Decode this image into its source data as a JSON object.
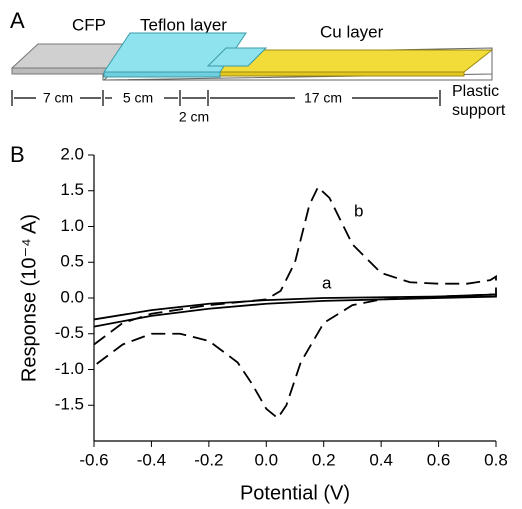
{
  "diagram": {
    "panel": "A",
    "cfp": "CFP",
    "teflon": "Teflon layer",
    "cu": "Cu layer",
    "support": [
      "Plastic",
      "support"
    ],
    "dims": [
      "7 cm",
      "5 cm",
      "2 cm",
      "17 cm"
    ]
  },
  "chart_data": {
    "type": "line",
    "panel": "B",
    "x_label": "Potential (V)",
    "y_label": "Response (10⁻⁴ A)",
    "xlim": [
      -0.6,
      0.8
    ],
    "ylim": [
      -2,
      2
    ],
    "xticks": [
      -0.6,
      -0.4,
      -0.2,
      {
        "value": 0,
        "label": "0.0"
      },
      0.2,
      0.4,
      0.6,
      0.8
    ],
    "yticks": [
      -1.5,
      {
        "value": -1,
        "label": "-1.0"
      },
      -0.5,
      {
        "value": 0,
        "label": "0.0"
      },
      0.5,
      {
        "value": 1,
        "label": "1.0"
      },
      1.5,
      {
        "value": 2,
        "label": "2.0"
      }
    ],
    "series": [
      {
        "name": "a",
        "color": "#000000",
        "dash": false,
        "x": [
          -0.6,
          -0.4,
          -0.2,
          0,
          0.2,
          0.4,
          0.6,
          0.8,
          0.8,
          0.6,
          0.4,
          0.2,
          0,
          -0.2,
          -0.4,
          -0.6
        ],
        "values": [
          -0.3,
          -0.17,
          -0.08,
          -0.03,
          0,
          0.01,
          0.02,
          0.05,
          0.02,
          0,
          -0.02,
          -0.04,
          -0.08,
          -0.15,
          -0.25,
          -0.4
        ]
      },
      {
        "name": "b",
        "color": "#000000",
        "dash": true,
        "x": [
          -0.6,
          -0.5,
          -0.4,
          -0.2,
          0,
          0.05,
          0.1,
          0.15,
          0.18,
          0.22,
          0.3,
          0.4,
          0.5,
          0.6,
          0.7,
          0.78,
          0.8,
          0.8,
          0.6,
          0.4,
          0.3,
          0.2,
          0.12,
          0.07,
          0.04,
          0,
          -0.05,
          -0.1,
          -0.2,
          -0.3,
          -0.4,
          -0.5,
          -0.6
        ],
        "values": [
          -0.65,
          -0.35,
          -0.22,
          -0.1,
          -0.02,
          0.1,
          0.5,
          1.3,
          1.55,
          1.4,
          0.75,
          0.35,
          0.22,
          0.2,
          0.2,
          0.25,
          0.3,
          0.05,
          0.02,
          -0.02,
          -0.1,
          -0.35,
          -0.9,
          -1.5,
          -1.68,
          -1.55,
          -1.2,
          -0.9,
          -0.6,
          -0.5,
          -0.5,
          -0.65,
          -0.95
        ]
      }
    ]
  }
}
